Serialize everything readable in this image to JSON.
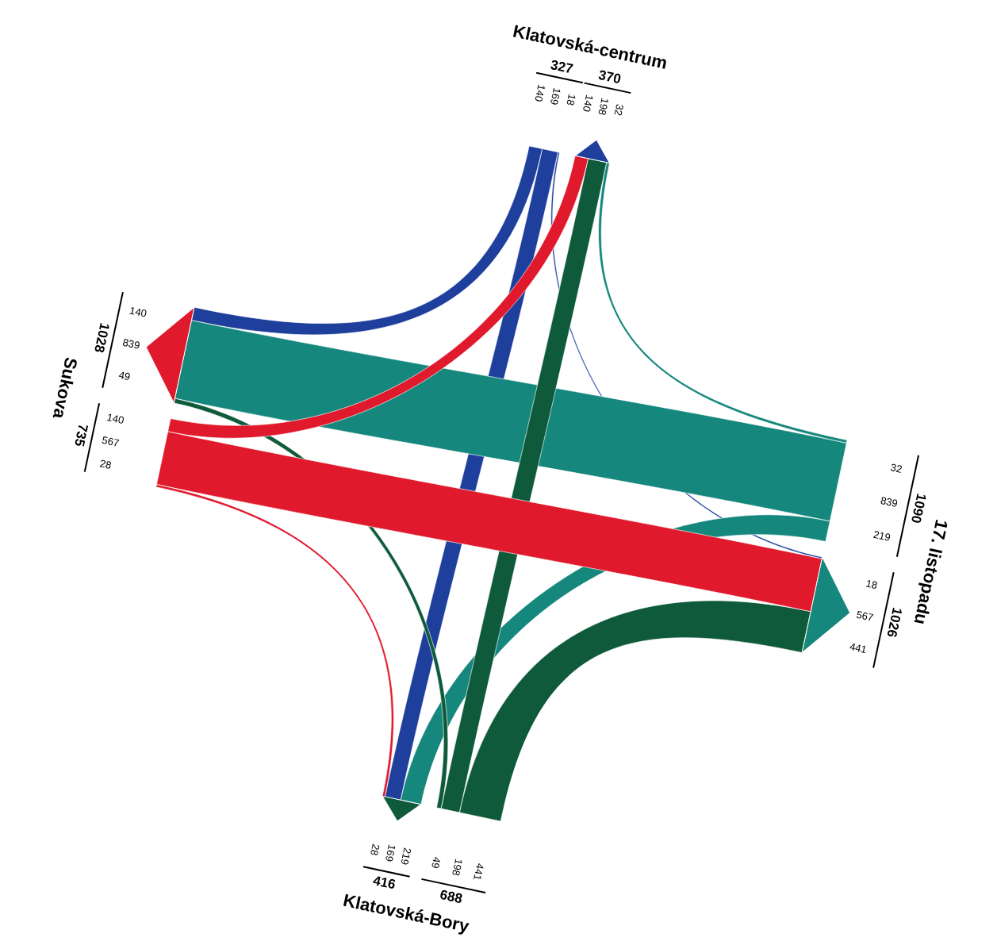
{
  "chart_data": {
    "type": "other",
    "categories": [
      "Klatovská-centrum",
      "17. listopadu",
      "Klatovská-Bory",
      "Sukova"
    ],
    "series": [
      {
        "color": "#1f3f9c",
        "values": [
          null,
          18,
          169,
          140
        ]
      },
      {
        "color": "#16877d",
        "values": [
          32,
          null,
          219,
          839
        ]
      },
      {
        "color": "#0e5a3a",
        "values": [
          198,
          441,
          null,
          49
        ]
      },
      {
        "color": "#e0192c",
        "values": [
          140,
          567,
          28,
          null
        ]
      }
    ],
    "totals": [
      [
        "327",
        "370"
      ],
      [
        "1090",
        "1026"
      ],
      [
        "688",
        "416"
      ],
      [
        "735",
        "1028"
      ]
    ],
    "annotations": [
      "140",
      "198",
      "32",
      "18",
      "567",
      "441",
      "219",
      "169",
      "28",
      "49",
      "839",
      "140"
    ],
    "data_labels": true
  }
}
